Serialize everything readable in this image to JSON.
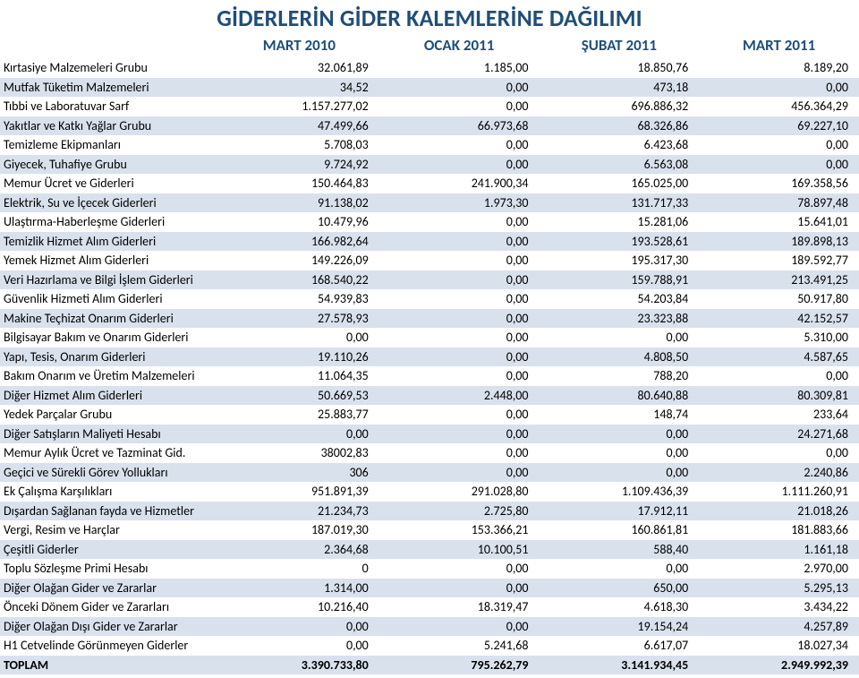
{
  "title": "GİDERLERİN GİDER KALEMLERİNE DAĞILIMI",
  "columns": [
    "",
    "MART 2010",
    "OCAK 2011",
    "ŞUBAT 2011",
    "MART 2011"
  ],
  "colors": {
    "heading": "#1f4e79",
    "alt_row": "#d9e1ec",
    "background": "#ffffff",
    "text": "#000000"
  },
  "fontsize": {
    "title": 26,
    "header": 17,
    "cell": 14
  },
  "rows": [
    {
      "label": "Kırtasiye Malzemeleri Grubu",
      "v": [
        "32.061,89",
        "1.185,00",
        "18.850,76",
        "8.189,20"
      ],
      "alt": false
    },
    {
      "label": "Mutfak Tüketim Malzemeleri",
      "v": [
        "34,52",
        "0,00",
        "473,18",
        "0,00"
      ],
      "alt": true
    },
    {
      "label": "Tıbbi ve Laboratuvar Sarf",
      "v": [
        "1.157.277,02",
        "0,00",
        "696.886,32",
        "456.364,29"
      ],
      "alt": false
    },
    {
      "label": "Yakıtlar ve Katkı Yağlar Grubu",
      "v": [
        "47.499,66",
        "66.973,68",
        "68.326,86",
        "69.227,10"
      ],
      "alt": true
    },
    {
      "label": "Temizleme Ekipmanları",
      "v": [
        "5.708,03",
        "0,00",
        "6.423,68",
        "0,00"
      ],
      "alt": false
    },
    {
      "label": "Giyecek, Tuhafiye Grubu",
      "v": [
        "9.724,92",
        "0,00",
        "6.563,08",
        "0,00"
      ],
      "alt": true
    },
    {
      "label": "Memur Ücret ve Giderleri",
      "v": [
        "150.464,83",
        "241.900,34",
        "165.025,00",
        "169.358,56"
      ],
      "alt": false
    },
    {
      "label": "Elektrik, Su ve İçecek Giderleri",
      "v": [
        "91.138,02",
        "1.973,30",
        "131.717,33",
        "78.897,48"
      ],
      "alt": true
    },
    {
      "label": "Ulaştırma-Haberleşme Giderleri",
      "v": [
        "10.479,96",
        "0,00",
        "15.281,06",
        "15.641,01"
      ],
      "alt": false
    },
    {
      "label": "Temizlik Hizmet Alım Giderleri",
      "v": [
        "166.982,64",
        "0,00",
        "193.528,61",
        "189.898,13"
      ],
      "alt": true
    },
    {
      "label": "Yemek Hizmet Alım Giderleri",
      "v": [
        "149.226,09",
        "0,00",
        "195.317,30",
        "189.592,77"
      ],
      "alt": false
    },
    {
      "label": "Veri Hazırlama ve Bilgi İşlem Giderleri",
      "v": [
        "168.540,22",
        "0,00",
        "159.788,91",
        "213.491,25"
      ],
      "alt": true
    },
    {
      "label": "Güvenlik Hizmeti Alım Giderleri",
      "v": [
        "54.939,83",
        "0,00",
        "54.203,84",
        "50.917,80"
      ],
      "alt": false
    },
    {
      "label": "Makine Teçhizat Onarım Giderleri",
      "v": [
        "27.578,93",
        "0,00",
        "23.323,88",
        "42.152,57"
      ],
      "alt": true
    },
    {
      "label": "Bilgisayar Bakım ve Onarım Giderleri",
      "v": [
        "0,00",
        "0,00",
        "0,00",
        "5.310,00"
      ],
      "alt": false
    },
    {
      "label": "Yapı, Tesis, Onarım Giderleri",
      "v": [
        "19.110,26",
        "0,00",
        "4.808,50",
        "4.587,65"
      ],
      "alt": true
    },
    {
      "label": "Bakım Onarım ve Üretim Malzemeleri",
      "v": [
        "11.064,35",
        "0,00",
        "788,20",
        "0,00"
      ],
      "alt": false
    },
    {
      "label": "Diğer Hizmet Alım Giderleri",
      "v": [
        "50.669,53",
        "2.448,00",
        "80.640,88",
        "80.309,81"
      ],
      "alt": true
    },
    {
      "label": "Yedek Parçalar Grubu",
      "v": [
        "25.883,77",
        "0,00",
        "148,74",
        "233,64"
      ],
      "alt": false
    },
    {
      "label": "Diğer Satışların Maliyeti Hesabı",
      "v": [
        "0,00",
        "0,00",
        "0,00",
        "24.271,68"
      ],
      "alt": true
    },
    {
      "label": "Memur Aylık Ücret ve Tazminat Gid.",
      "v": [
        "38002,83",
        "0,00",
        "0,00",
        "0,00"
      ],
      "alt": false
    },
    {
      "label": "Geçici ve Sürekli Görev Yollukları",
      "v": [
        "306",
        "0,00",
        "0,00",
        "2.240,86"
      ],
      "alt": true
    },
    {
      "label": "Ek Çalışma Karşılıkları",
      "v": [
        "951.891,39",
        "291.028,80",
        "1.109.436,39",
        "1.111.260,91"
      ],
      "alt": false
    },
    {
      "label": "Dışardan Sağlanan fayda ve Hizmetler",
      "v": [
        "21.234,73",
        "2.725,80",
        "17.912,11",
        "21.018,26"
      ],
      "alt": true
    },
    {
      "label": "Vergi, Resim ve Harçlar",
      "v": [
        "187.019,30",
        "153.366,21",
        "160.861,81",
        "181.883,66"
      ],
      "alt": false
    },
    {
      "label": "Çeşitli Giderler",
      "v": [
        "2.364,68",
        "10.100,51",
        "588,40",
        "1.161,18"
      ],
      "alt": true
    },
    {
      "label": "Toplu Sözleşme Primi Hesabı",
      "v": [
        "0",
        "0,00",
        "0,00",
        "2.970,00"
      ],
      "alt": false
    },
    {
      "label": "Diğer Olağan Gider ve Zararlar",
      "v": [
        "1.314,00",
        "0,00",
        "650,00",
        "5.295,13"
      ],
      "alt": true
    },
    {
      "label": "Önceki Dönem Gider ve Zararları",
      "v": [
        "10.216,40",
        "18.319,47",
        "4.618,30",
        "3.434,22"
      ],
      "alt": false
    },
    {
      "label": "Diğer Olağan Dışı Gider ve Zararlar",
      "v": [
        "0,00",
        "0,00",
        "19.154,24",
        "4.257,89"
      ],
      "alt": true
    },
    {
      "label": "H1 Cetvelinde Görünmeyen Giderler",
      "v": [
        "0,00",
        "5.241,68",
        "6.617,07",
        "18.027,34"
      ],
      "alt": false
    },
    {
      "label": "TOPLAM",
      "v": [
        "3.390.733,80",
        "795.262,79",
        "3.141.934,45",
        "2.949.992,39"
      ],
      "alt": true,
      "bold": true
    }
  ]
}
